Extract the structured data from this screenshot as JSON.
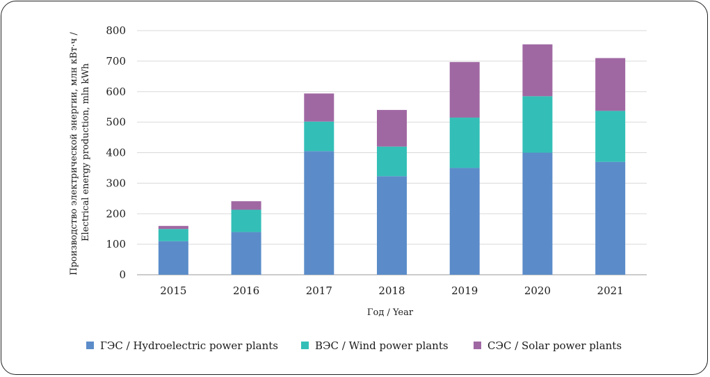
{
  "chart_data": {
    "type": "bar",
    "stacked": true,
    "categories": [
      "2015",
      "2016",
      "2017",
      "2018",
      "2019",
      "2020",
      "2021"
    ],
    "series": [
      {
        "name": "ГЭС / Hydroelectric power plants",
        "color": "#5b8cc9",
        "values": [
          110,
          140,
          405,
          323,
          350,
          400,
          370
        ]
      },
      {
        "name": "ВЭС / Wind power plants",
        "color": "#33bfb7",
        "values": [
          40,
          73,
          97,
          97,
          165,
          185,
          167
        ]
      },
      {
        "name": "СЭС / Solar power plants",
        "color": "#a068a3",
        "values": [
          10,
          28,
          92,
          120,
          182,
          170,
          173
        ]
      }
    ],
    "ylim": [
      0,
      800
    ],
    "yticks": [
      0,
      100,
      200,
      300,
      400,
      500,
      600,
      700,
      800
    ],
    "xlabel": "Год / Year",
    "ylabel_line1": "Производство электрической энергии, млн кВт·ч /",
    "ylabel_line2": "Electrical energy production, mln kWh",
    "grid": true,
    "legend_position": "bottom"
  }
}
